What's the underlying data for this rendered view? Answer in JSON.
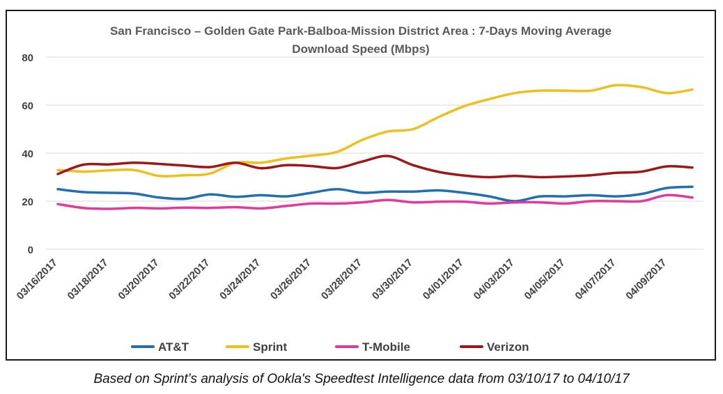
{
  "chart_data": {
    "type": "line",
    "title": "San Francisco – Golden Gate Park-Balboa-Mission District Area : 7-Days Moving Average Download Speed (Mbps)",
    "title_lines": [
      "San Francisco – Golden Gate Park-Balboa-Mission District Area : 7-Days Moving Average",
      "Download Speed (Mbps)"
    ],
    "xlabel": "",
    "ylabel": "",
    "ylim": [
      0,
      80
    ],
    "yticks": [
      0,
      20,
      40,
      60,
      80
    ],
    "grid": true,
    "legend_position": "bottom",
    "x": [
      "03/16/2017",
      "03/17/2017",
      "03/18/2017",
      "03/19/2017",
      "03/20/2017",
      "03/21/2017",
      "03/22/2017",
      "03/23/2017",
      "03/24/2017",
      "03/25/2017",
      "03/26/2017",
      "03/27/2017",
      "03/28/2017",
      "03/29/2017",
      "03/30/2017",
      "03/31/2017",
      "04/01/2017",
      "04/02/2017",
      "04/03/2017",
      "04/04/2017",
      "04/05/2017",
      "04/06/2017",
      "04/07/2017",
      "04/08/2017",
      "04/09/2017",
      "04/10/2017"
    ],
    "xtick_labels": [
      "03/16/2017",
      "03/18/2017",
      "03/20/2017",
      "03/22/2017",
      "03/24/2017",
      "03/26/2017",
      "03/28/2017",
      "03/30/2017",
      "04/01/2017",
      "04/03/2017",
      "04/05/2017",
      "04/07/2017",
      "04/09/2017"
    ],
    "series": [
      {
        "name": "AT&T",
        "color": "#1f6fb2",
        "values": [
          25,
          23.8,
          23.5,
          23.2,
          21.5,
          21,
          22.8,
          21.8,
          22.5,
          22,
          23.5,
          25,
          23.5,
          24,
          24,
          24.5,
          23.5,
          22,
          20,
          22,
          22,
          22.5,
          22,
          23,
          25.5,
          26
        ]
      },
      {
        "name": "Sprint",
        "color": "#f2be1a",
        "values": [
          33,
          32.3,
          32.8,
          33,
          30.5,
          30.8,
          31.5,
          36,
          36,
          37.8,
          39,
          40.5,
          45.5,
          49,
          50,
          55,
          59.5,
          62.5,
          65,
          66,
          66,
          66,
          68.3,
          67.5,
          65,
          66.5
        ]
      },
      {
        "name": "T-Mobile",
        "color": "#e5379c",
        "values": [
          18.8,
          17.2,
          16.8,
          17.2,
          17,
          17.3,
          17.2,
          17.5,
          17,
          18,
          19,
          19,
          19.5,
          20.5,
          19.5,
          19.8,
          19.8,
          19,
          19.5,
          19.5,
          19,
          20,
          20,
          20,
          22.5,
          21.5
        ]
      },
      {
        "name": "Verizon",
        "color": "#a31515",
        "values": [
          31.3,
          35.2,
          35.3,
          36,
          35.5,
          34.8,
          34.2,
          36,
          33.7,
          35,
          34.6,
          33.8,
          36.5,
          38.8,
          35,
          32.2,
          30.7,
          30,
          30.5,
          30,
          30.3,
          30.8,
          31.8,
          32.3,
          34.5,
          34
        ]
      }
    ]
  },
  "caption": "Based on Sprint’s analysis of Ookla's Speedtest Intelligence data from 03/10/17 to 04/10/17"
}
